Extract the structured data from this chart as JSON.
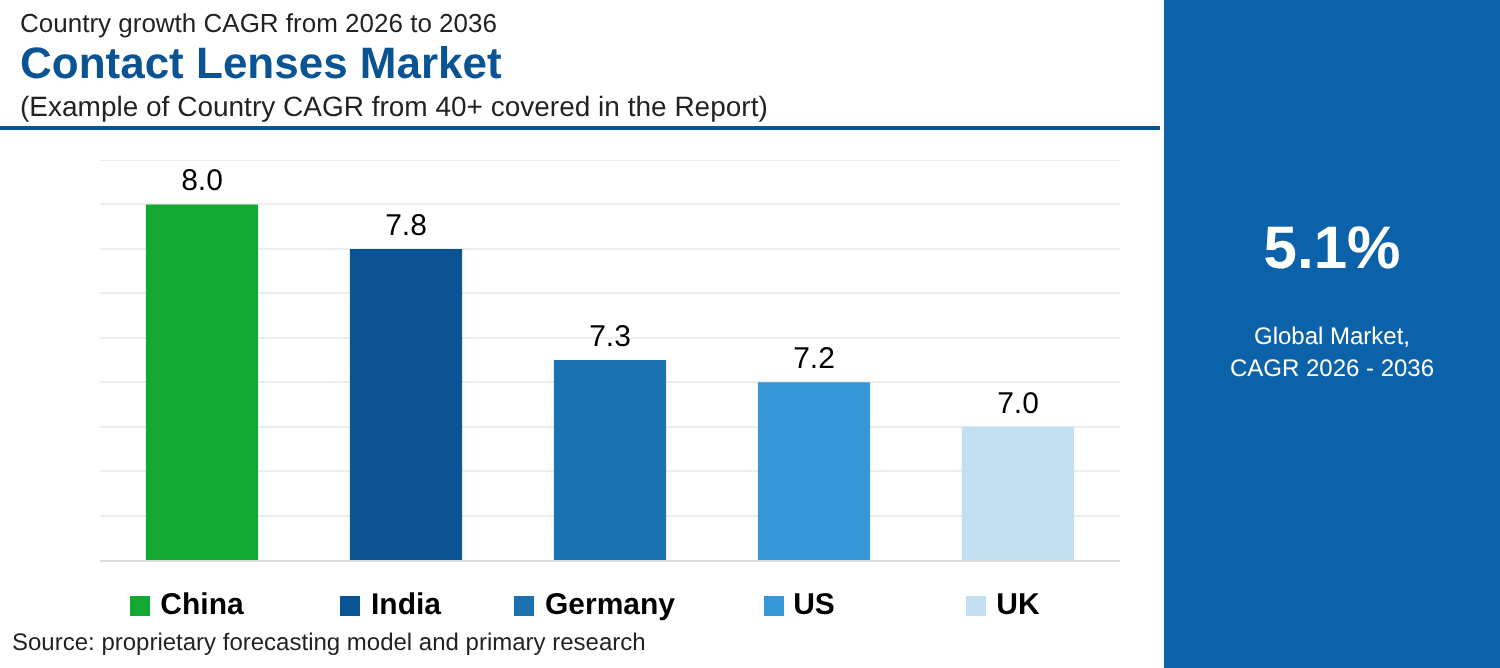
{
  "chart_data": [
    {
      "type": "bar",
      "subtitle": "Country growth CAGR from 2026 to 2036",
      "title": "Contact Lenses Market",
      "annotations": [
        "(Example of Country CAGR from 40+ covered in the Report)",
        "Source: proprietary forecasting model and primary research"
      ],
      "categories": [
        "China",
        "India",
        "Germany",
        "US",
        "UK"
      ],
      "values": [
        8.0,
        7.8,
        7.3,
        7.2,
        7.0
      ],
      "value_labels": [
        "8.0",
        "7.8",
        "7.3",
        "7.2",
        "7.0"
      ],
      "colors": [
        "#12a832",
        "#0b5494",
        "#1c72b0",
        "#3597d8",
        "#c3e0f3"
      ],
      "ylim": [
        6.4,
        8.2
      ],
      "yticks": [
        {
          "value": 6.4,
          "label": null
        },
        {
          "value": 6.6,
          "label": null
        },
        {
          "value": 6.8,
          "label": null
        },
        {
          "value": 7.0,
          "label": null
        },
        {
          "value": 7.2,
          "label": null
        },
        {
          "value": 7.4,
          "label": null
        },
        {
          "value": 7.6,
          "label": null
        },
        {
          "value": 7.8,
          "label": null
        },
        {
          "value": 8.0,
          "label": null
        },
        {
          "value": 8.2,
          "label": null
        }
      ],
      "grid": "y",
      "tick_labels": "x"
    },
    {
      "type": "other",
      "annotations": [
        "5.1%",
        "Global Market,\nCAGR 2026 - 2036"
      ]
    }
  ]
}
